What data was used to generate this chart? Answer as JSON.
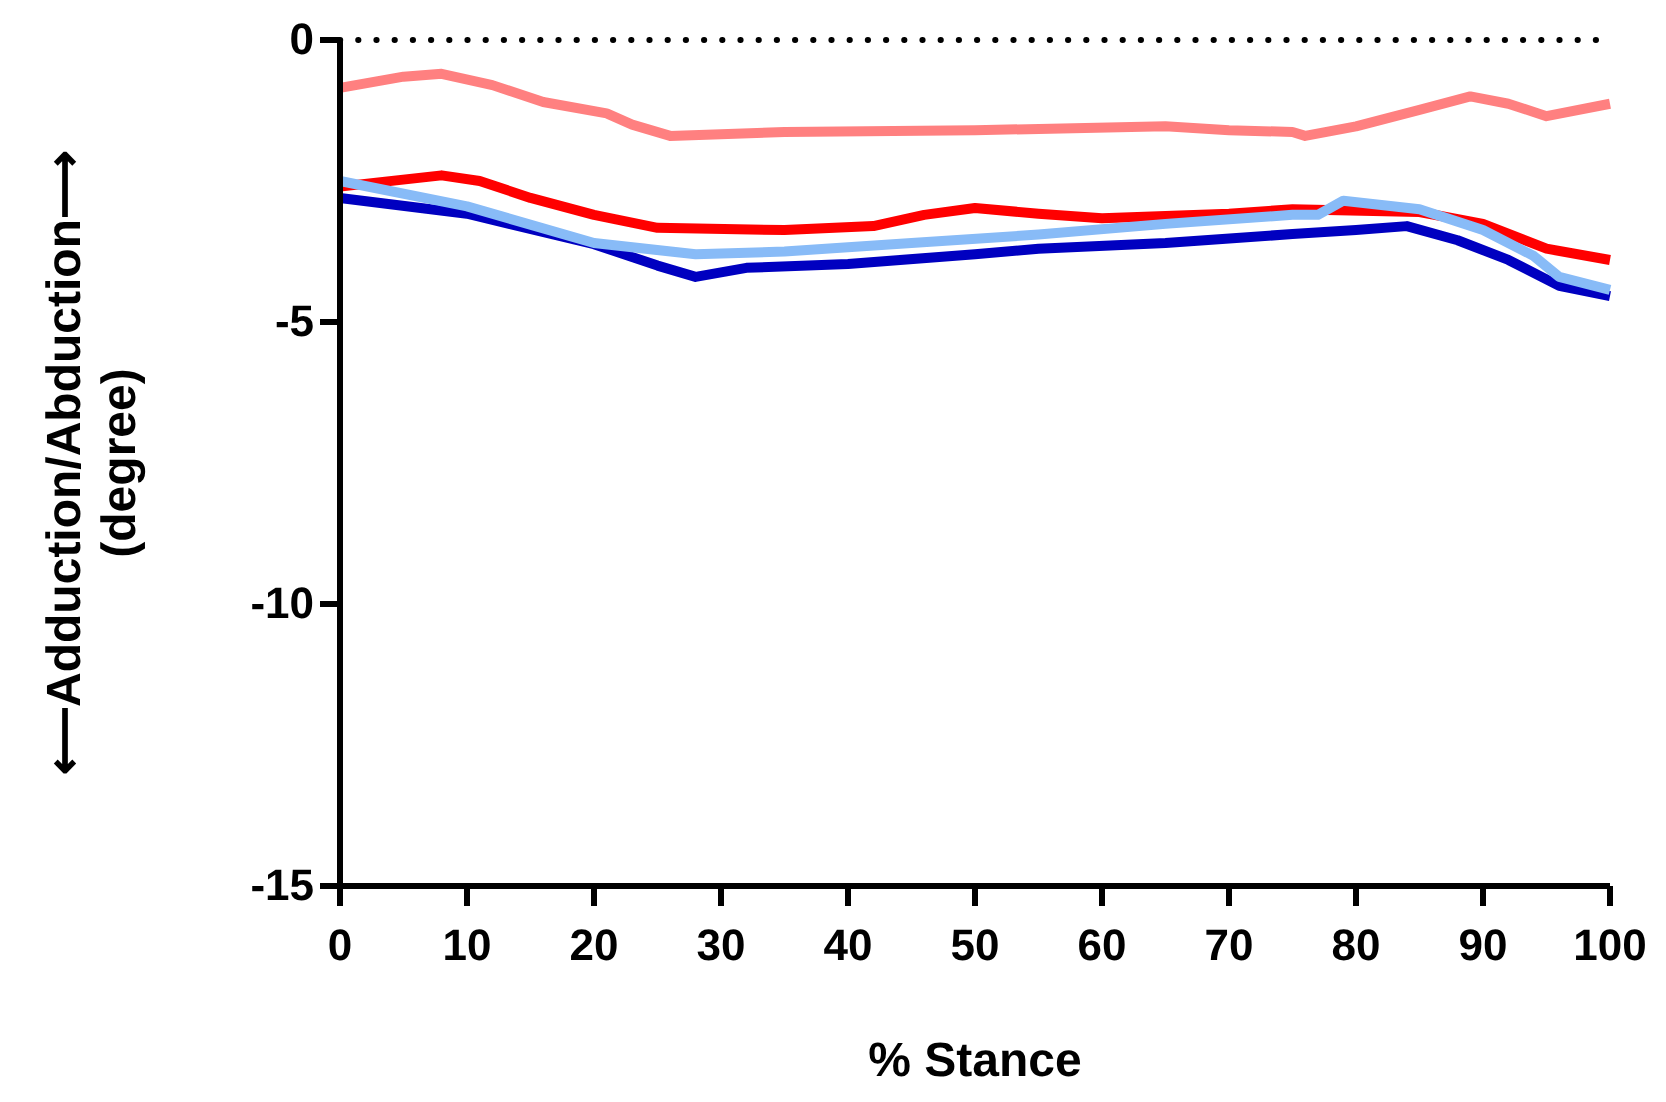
{
  "chart_data": {
    "type": "line",
    "xlabel": "% Stance",
    "ylabel": "⟵Adduction/Abduction⟶\n(degree)",
    "xlim": [
      0,
      100
    ],
    "xticks": [
      0,
      10,
      20,
      30,
      40,
      50,
      60,
      70,
      80,
      90,
      100
    ],
    "ylim": [
      -15,
      0
    ],
    "yticks": [
      -15,
      -10,
      -5,
      0
    ],
    "grid": false,
    "marker": "none",
    "line_style": "solid",
    "ref_lines": [
      {
        "axis": "y",
        "value": 0,
        "line_style": "dotted",
        "color": "#000000"
      }
    ],
    "series": [
      {
        "color": "#ff8080",
        "x": [
          0,
          5,
          8,
          12,
          16,
          21,
          23,
          26,
          35,
          50,
          65,
          70,
          75,
          76,
          80,
          85,
          89,
          92,
          95,
          100
        ],
        "values": [
          -0.85,
          -0.65,
          -0.6,
          -0.8,
          -1.1,
          -1.3,
          -1.5,
          -1.7,
          -1.63,
          -1.6,
          -1.53,
          -1.6,
          -1.63,
          -1.7,
          -1.53,
          -1.24,
          -1.0,
          -1.13,
          -1.35,
          -1.13
        ]
      },
      {
        "color": "#ff0000",
        "x": [
          0,
          8,
          11,
          15,
          20,
          25,
          35,
          42,
          46,
          50,
          55,
          60,
          70,
          75,
          85,
          90,
          95,
          100
        ],
        "values": [
          -2.6,
          -2.4,
          -2.5,
          -2.8,
          -3.1,
          -3.33,
          -3.37,
          -3.3,
          -3.1,
          -2.98,
          -3.08,
          -3.16,
          -3.08,
          -3.0,
          -3.05,
          -3.26,
          -3.7,
          -3.9
        ]
      },
      {
        "color": "#0000c0",
        "x": [
          0,
          10,
          20,
          25,
          28,
          32,
          40,
          50,
          55,
          65,
          75,
          80,
          84,
          88,
          92,
          96,
          100
        ],
        "values": [
          -2.8,
          -3.08,
          -3.62,
          -4.0,
          -4.2,
          -4.04,
          -3.97,
          -3.8,
          -3.7,
          -3.6,
          -3.44,
          -3.37,
          -3.3,
          -3.55,
          -3.9,
          -4.36,
          -4.54
        ]
      },
      {
        "color": "#88bbf7",
        "x": [
          0,
          10,
          20,
          28,
          35,
          45,
          55,
          65,
          75,
          77,
          79,
          85,
          90,
          94,
          96,
          100
        ],
        "values": [
          -2.5,
          -2.95,
          -3.6,
          -3.8,
          -3.75,
          -3.6,
          -3.45,
          -3.26,
          -3.1,
          -3.1,
          -2.85,
          -3.0,
          -3.37,
          -3.83,
          -4.2,
          -4.43
        ]
      }
    ]
  }
}
